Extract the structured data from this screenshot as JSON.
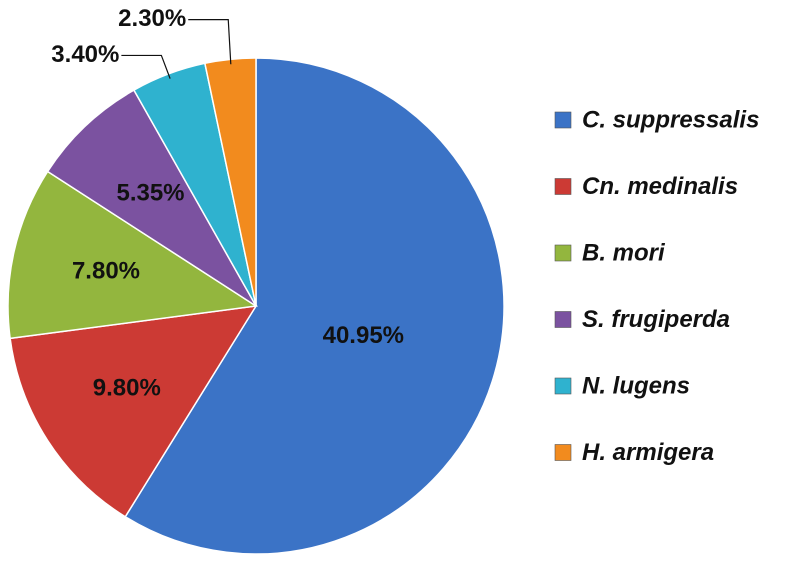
{
  "chart_data": {
    "type": "pie",
    "categories": [
      "C. suppressalis",
      "Cn. medinalis",
      "B. mori",
      "S. frugiperda",
      "N. lugens",
      "H. armigera"
    ],
    "values": [
      40.95,
      9.8,
      7.8,
      5.35,
      3.4,
      2.3
    ],
    "value_labels": [
      "40.95%",
      "9.80%",
      "7.80%",
      "5.35%",
      "3.40%",
      "2.30%"
    ],
    "colors": [
      "#3b73c6",
      "#cc3a34",
      "#93b63e",
      "#7b52a0",
      "#2fb2cf",
      "#f28b1e"
    ],
    "legend": "right"
  }
}
